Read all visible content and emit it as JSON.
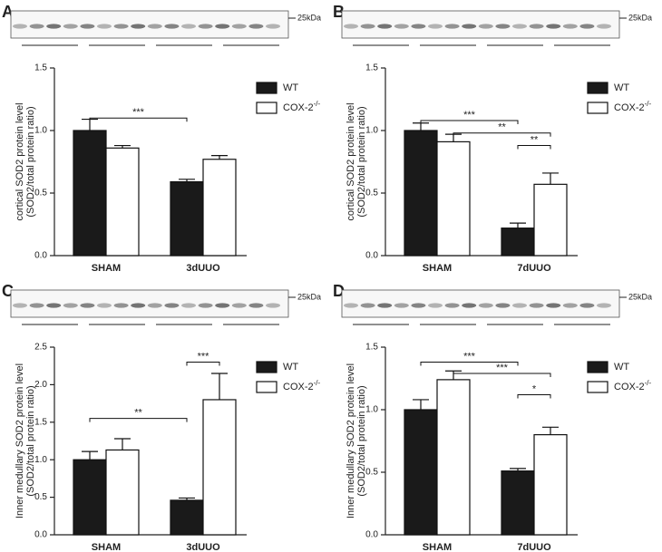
{
  "chart_data": [
    {
      "type": "bar",
      "panel": "A",
      "marker_label": "25kDa",
      "y_label": [
        "cortical SOD2 protein level",
        "(SOD2/total protein ratio)"
      ],
      "categories": [
        "SHAM",
        "3dUUO"
      ],
      "series": [
        {
          "name": "WT",
          "color": "#1a1a1a",
          "values": [
            1.0,
            0.59
          ],
          "errors": [
            0.09,
            0.02
          ]
        },
        {
          "name": "COX-2",
          "superscript": "-/-",
          "color": "#ffffff",
          "values": [
            0.86,
            0.77
          ],
          "errors": [
            0.02,
            0.03
          ]
        }
      ],
      "ylim": [
        0,
        1.5
      ],
      "yticks": [
        {
          "value": 0,
          "label": "0.0"
        },
        {
          "value": 0.5,
          "label": "0.5"
        },
        {
          "value": 1,
          "label": "1.0"
        },
        {
          "value": 1.5,
          "label": "1.5"
        }
      ],
      "annotations": [
        {
          "label": "***",
          "bars": [
            0,
            2
          ],
          "y": 1.1
        }
      ]
    },
    {
      "type": "bar",
      "panel": "B",
      "marker_label": "25kDa",
      "y_label": [
        "cortical SOD2 protein level",
        "(SOD2/total protein ratio)"
      ],
      "categories": [
        "SHAM",
        "7dUUO"
      ],
      "series": [
        {
          "name": "WT",
          "color": "#1a1a1a",
          "values": [
            1.0,
            0.22
          ],
          "errors": [
            0.06,
            0.04
          ]
        },
        {
          "name": "COX-2",
          "superscript": "-/-",
          "color": "#ffffff",
          "values": [
            0.91,
            0.57
          ],
          "errors": [
            0.06,
            0.09
          ]
        }
      ],
      "ylim": [
        0,
        1.5
      ],
      "yticks": [
        {
          "value": 0,
          "label": "0.0"
        },
        {
          "value": 0.5,
          "label": "0.5"
        },
        {
          "value": 1,
          "label": "1.0"
        },
        {
          "value": 1.5,
          "label": "1.5"
        }
      ],
      "annotations": [
        {
          "label": "***",
          "bars": [
            0,
            2
          ],
          "y": 1.08
        },
        {
          "label": "**",
          "bars": [
            1,
            3
          ],
          "y": 0.98
        },
        {
          "label": "**",
          "bars": [
            2,
            3
          ],
          "y": 0.88
        }
      ]
    },
    {
      "type": "bar",
      "panel": "C",
      "marker_label": "25kDa",
      "y_label": [
        "Inner medullary SOD2 protein level",
        "(SOD2/total protein ratio)"
      ],
      "categories": [
        "SHAM",
        "3dUUO"
      ],
      "series": [
        {
          "name": "WT",
          "color": "#1a1a1a",
          "values": [
            1.0,
            0.46
          ],
          "errors": [
            0.11,
            0.03
          ]
        },
        {
          "name": "COX-2",
          "superscript": "-/-",
          "color": "#ffffff",
          "values": [
            1.13,
            1.8
          ],
          "errors": [
            0.15,
            0.35
          ]
        }
      ],
      "ylim": [
        0,
        2.5
      ],
      "yticks": [
        {
          "value": 0,
          "label": "0.0"
        },
        {
          "value": 0.5,
          "label": "0.5"
        },
        {
          "value": 1,
          "label": "1.0"
        },
        {
          "value": 1.5,
          "label": "1.5"
        },
        {
          "value": 2,
          "label": "2.0"
        },
        {
          "value": 2.5,
          "label": "2.5"
        }
      ],
      "annotations": [
        {
          "label": "**",
          "bars": [
            0,
            2
          ],
          "y": 1.55
        },
        {
          "label": "***",
          "bars": [
            2,
            3
          ],
          "y": 2.3
        }
      ]
    },
    {
      "type": "bar",
      "panel": "D",
      "marker_label": "25kDa",
      "y_label": [
        "Inner medullary SOD2 protein level",
        "(SOD2/total protein ratio)"
      ],
      "categories": [
        "SHAM",
        "7dUUO"
      ],
      "series": [
        {
          "name": "WT",
          "color": "#1a1a1a",
          "values": [
            1.0,
            0.51
          ],
          "errors": [
            0.08,
            0.02
          ]
        },
        {
          "name": "COX-2",
          "superscript": "-/-",
          "color": "#ffffff",
          "values": [
            1.24,
            0.8
          ],
          "errors": [
            0.07,
            0.06
          ]
        }
      ],
      "ylim": [
        0,
        1.5
      ],
      "yticks": [
        {
          "value": 0,
          "label": "0.0"
        },
        {
          "value": 0.5,
          "label": "0.5"
        },
        {
          "value": 1,
          "label": "1.0"
        },
        {
          "value": 1.5,
          "label": "1.5"
        }
      ],
      "annotations": [
        {
          "label": "***",
          "bars": [
            0,
            2
          ],
          "y": 1.38
        },
        {
          "label": "***",
          "bars": [
            1,
            3
          ],
          "y": 1.29
        },
        {
          "label": "*",
          "bars": [
            2,
            3
          ],
          "y": 1.12
        }
      ]
    }
  ]
}
